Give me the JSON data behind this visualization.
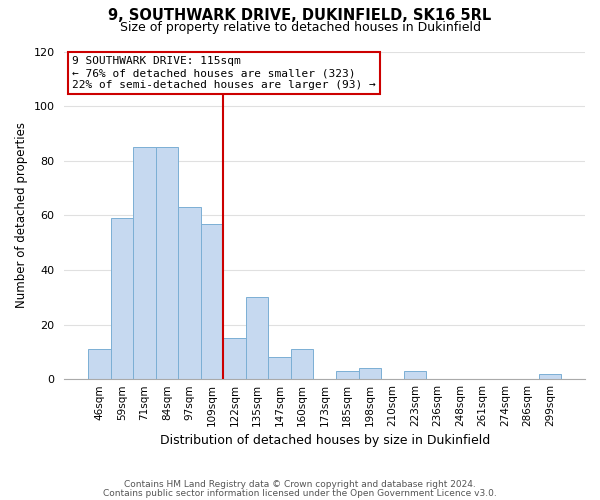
{
  "title": "9, SOUTHWARK DRIVE, DUKINFIELD, SK16 5RL",
  "subtitle": "Size of property relative to detached houses in Dukinfield",
  "xlabel": "Distribution of detached houses by size in Dukinfield",
  "ylabel": "Number of detached properties",
  "bar_labels": [
    "46sqm",
    "59sqm",
    "71sqm",
    "84sqm",
    "97sqm",
    "109sqm",
    "122sqm",
    "135sqm",
    "147sqm",
    "160sqm",
    "173sqm",
    "185sqm",
    "198sqm",
    "210sqm",
    "223sqm",
    "236sqm",
    "248sqm",
    "261sqm",
    "274sqm",
    "286sqm",
    "299sqm"
  ],
  "bar_values": [
    11,
    59,
    85,
    85,
    63,
    57,
    15,
    30,
    8,
    11,
    0,
    3,
    4,
    0,
    3,
    0,
    0,
    0,
    0,
    0,
    2
  ],
  "bar_color": "#c6d9f0",
  "bar_edge_color": "#7bafd4",
  "highlight_line_color": "#cc0000",
  "highlight_line_index": 6,
  "ylim": [
    0,
    120
  ],
  "yticks": [
    0,
    20,
    40,
    60,
    80,
    100,
    120
  ],
  "annotation_title": "9 SOUTHWARK DRIVE: 115sqm",
  "annotation_line1": "← 76% of detached houses are smaller (323)",
  "annotation_line2": "22% of semi-detached houses are larger (93) →",
  "annotation_box_color": "#ffffff",
  "annotation_box_edge": "#cc0000",
  "footer_line1": "Contains HM Land Registry data © Crown copyright and database right 2024.",
  "footer_line2": "Contains public sector information licensed under the Open Government Licence v3.0.",
  "background_color": "#ffffff",
  "grid_color": "#e0e0e0"
}
